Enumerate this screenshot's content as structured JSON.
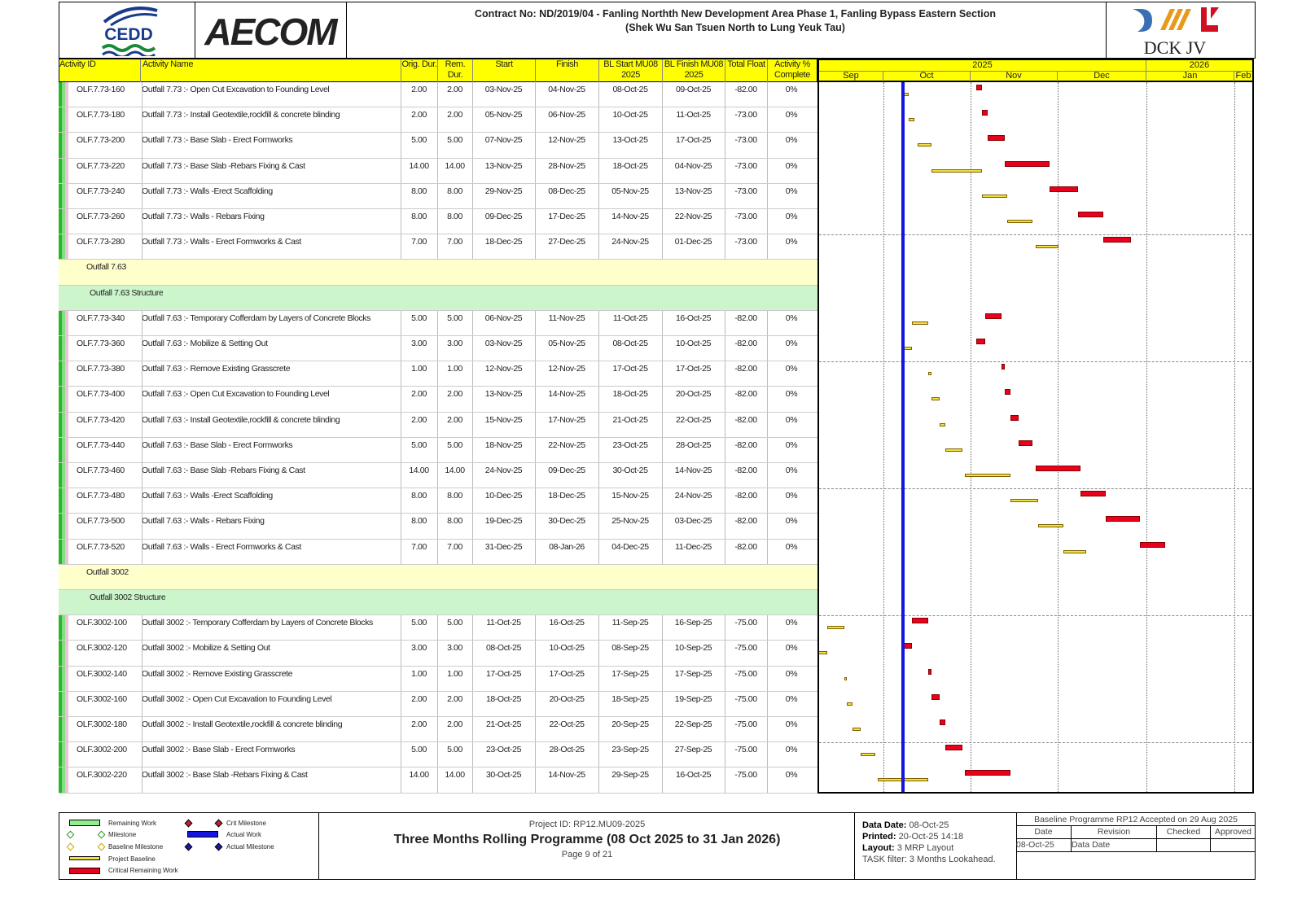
{
  "header": {
    "logo_cedd": "CEDD",
    "logo_aecom": "AECOM",
    "logo_dck": "DCK JV",
    "title_line1": "Contract No: ND/2019/04 - Fanling Northth New Development Area Phase 1, Fanling Bypass Eastern Section",
    "title_line2": "(Shek Wu San Tsuen North to Lung Yeuk Tau)"
  },
  "columns": {
    "id": "Activity ID",
    "name": "Activity Name",
    "orig": "Orig. Dur.",
    "rem": "Rem. Dur.",
    "start": "Start",
    "finish": "Finish",
    "bls": "BL Start MU08 2025",
    "blf": "BL Finish MU08 2025",
    "float": "Total Float",
    "pct": "Activity % Complete"
  },
  "timeline": {
    "years": [
      "2025",
      "2026"
    ],
    "months": [
      "Sep",
      "Oct",
      "Nov",
      "Dec",
      "Jan",
      "Feb"
    ],
    "data_date": "08-Oct-25"
  },
  "colors": {
    "critical": "#e8001c",
    "baseline": "#f0e040",
    "actual": "#1515e0",
    "header": "#ffff00"
  },
  "rows": [
    {
      "type": "act",
      "id": "OLF.7.73-160",
      "name": "Outfall 7.73 :- Open Cut Excavation to Founding Level",
      "orig": "2.00",
      "rem": "2.00",
      "start": "03-Nov-25",
      "finish": "04-Nov-25",
      "bls": "08-Oct-25",
      "blf": "09-Oct-25",
      "float": "-82.00",
      "pct": "0%"
    },
    {
      "type": "act",
      "id": "OLF.7.73-180",
      "name": "Outfall 7.73 :- Install Geotextile,rockfill & concrete blinding",
      "orig": "2.00",
      "rem": "2.00",
      "start": "05-Nov-25",
      "finish": "06-Nov-25",
      "bls": "10-Oct-25",
      "blf": "11-Oct-25",
      "float": "-73.00",
      "pct": "0%"
    },
    {
      "type": "act",
      "id": "OLF.7.73-200",
      "name": "Outfall 7.73 :- Base Slab - Erect Formworks",
      "orig": "5.00",
      "rem": "5.00",
      "start": "07-Nov-25",
      "finish": "12-Nov-25",
      "bls": "13-Oct-25",
      "blf": "17-Oct-25",
      "float": "-73.00",
      "pct": "0%"
    },
    {
      "type": "act",
      "id": "OLF.7.73-220",
      "name": "Outfall 7.73 :- Base Slab -Rebars Fixing & Cast",
      "orig": "14.00",
      "rem": "14.00",
      "start": "13-Nov-25",
      "finish": "28-Nov-25",
      "bls": "18-Oct-25",
      "blf": "04-Nov-25",
      "float": "-73.00",
      "pct": "0%"
    },
    {
      "type": "act",
      "id": "OLF.7.73-240",
      "name": "Outfall 7.73 :- Walls -Erect Scaffolding",
      "orig": "8.00",
      "rem": "8.00",
      "start": "29-Nov-25",
      "finish": "08-Dec-25",
      "bls": "05-Nov-25",
      "blf": "13-Nov-25",
      "float": "-73.00",
      "pct": "0%"
    },
    {
      "type": "act",
      "id": "OLF.7.73-260",
      "name": "Outfall 7.73 :- Walls - Rebars Fixing",
      "orig": "8.00",
      "rem": "8.00",
      "start": "09-Dec-25",
      "finish": "17-Dec-25",
      "bls": "14-Nov-25",
      "blf": "22-Nov-25",
      "float": "-73.00",
      "pct": "0%"
    },
    {
      "type": "act",
      "id": "OLF.7.73-280",
      "name": "Outfall 7.73 :- Walls - Erect Formworks & Cast",
      "orig": "7.00",
      "rem": "7.00",
      "start": "18-Dec-25",
      "finish": "27-Dec-25",
      "bls": "24-Nov-25",
      "blf": "01-Dec-25",
      "float": "-73.00",
      "pct": "0%"
    },
    {
      "type": "sec1",
      "name": "Outfall 7.63"
    },
    {
      "type": "sec2",
      "name": "Outfall 7.63 Structure"
    },
    {
      "type": "act",
      "id": "OLF.7.73-340",
      "name": "Outfall 7.63 :- Temporary Cofferdam by Layers of Concrete Blocks",
      "orig": "5.00",
      "rem": "5.00",
      "start": "06-Nov-25",
      "finish": "11-Nov-25",
      "bls": "11-Oct-25",
      "blf": "16-Oct-25",
      "float": "-82.00",
      "pct": "0%"
    },
    {
      "type": "act",
      "id": "OLF.7.73-360",
      "name": "Outfall 7.63 :- Mobilize & Setting Out",
      "orig": "3.00",
      "rem": "3.00",
      "start": "03-Nov-25",
      "finish": "05-Nov-25",
      "bls": "08-Oct-25",
      "blf": "10-Oct-25",
      "float": "-82.00",
      "pct": "0%"
    },
    {
      "type": "act",
      "id": "OLF.7.73-380",
      "name": "Outfall 7.63 :- Remove Existing Grasscrete",
      "orig": "1.00",
      "rem": "1.00",
      "start": "12-Nov-25",
      "finish": "12-Nov-25",
      "bls": "17-Oct-25",
      "blf": "17-Oct-25",
      "float": "-82.00",
      "pct": "0%"
    },
    {
      "type": "act",
      "id": "OLF.7.73-400",
      "name": "Outfall 7.63 :- Open Cut Excavation to Founding Level",
      "orig": "2.00",
      "rem": "2.00",
      "start": "13-Nov-25",
      "finish": "14-Nov-25",
      "bls": "18-Oct-25",
      "blf": "20-Oct-25",
      "float": "-82.00",
      "pct": "0%"
    },
    {
      "type": "act",
      "id": "OLF.7.73-420",
      "name": "Outfall 7.63 :- Install Geotextile,rockfill & concrete blinding",
      "orig": "2.00",
      "rem": "2.00",
      "start": "15-Nov-25",
      "finish": "17-Nov-25",
      "bls": "21-Oct-25",
      "blf": "22-Oct-25",
      "float": "-82.00",
      "pct": "0%"
    },
    {
      "type": "act",
      "id": "OLF.7.73-440",
      "name": "Outfall 7.63 :- Base Slab - Erect Formworks",
      "orig": "5.00",
      "rem": "5.00",
      "start": "18-Nov-25",
      "finish": "22-Nov-25",
      "bls": "23-Oct-25",
      "blf": "28-Oct-25",
      "float": "-82.00",
      "pct": "0%"
    },
    {
      "type": "act",
      "id": "OLF.7.73-460",
      "name": "Outfall 7.63 :- Base Slab -Rebars Fixing & Cast",
      "orig": "14.00",
      "rem": "14.00",
      "start": "24-Nov-25",
      "finish": "09-Dec-25",
      "bls": "30-Oct-25",
      "blf": "14-Nov-25",
      "float": "-82.00",
      "pct": "0%"
    },
    {
      "type": "act",
      "id": "OLF.7.73-480",
      "name": "Outfall 7.63 :- Walls -Erect Scaffolding",
      "orig": "8.00",
      "rem": "8.00",
      "start": "10-Dec-25",
      "finish": "18-Dec-25",
      "bls": "15-Nov-25",
      "blf": "24-Nov-25",
      "float": "-82.00",
      "pct": "0%"
    },
    {
      "type": "act",
      "id": "OLF.7.73-500",
      "name": "Outfall 7.63 :- Walls - Rebars Fixing",
      "orig": "8.00",
      "rem": "8.00",
      "start": "19-Dec-25",
      "finish": "30-Dec-25",
      "bls": "25-Nov-25",
      "blf": "03-Dec-25",
      "float": "-82.00",
      "pct": "0%"
    },
    {
      "type": "act",
      "id": "OLF.7.73-520",
      "name": "Outfall 7.63 :- Walls - Erect Formworks & Cast",
      "orig": "7.00",
      "rem": "7.00",
      "start": "31-Dec-25",
      "finish": "08-Jan-26",
      "bls": "04-Dec-25",
      "blf": "11-Dec-25",
      "float": "-82.00",
      "pct": "0%"
    },
    {
      "type": "sec1",
      "name": "Outfall 3002"
    },
    {
      "type": "sec2",
      "name": "Outfall 3002 Structure"
    },
    {
      "type": "act",
      "id": "OLF.3002-100",
      "name": "Outfall 3002 :- Temporary Cofferdam by Layers of Concrete Blocks",
      "orig": "5.00",
      "rem": "5.00",
      "start": "11-Oct-25",
      "finish": "16-Oct-25",
      "bls": "11-Sep-25",
      "blf": "16-Sep-25",
      "float": "-75.00",
      "pct": "0%"
    },
    {
      "type": "act",
      "id": "OLF.3002-120",
      "name": "Outfall 3002 :- Mobilize & Setting Out",
      "orig": "3.00",
      "rem": "3.00",
      "start": "08-Oct-25",
      "finish": "10-Oct-25",
      "bls": "08-Sep-25",
      "blf": "10-Sep-25",
      "float": "-75.00",
      "pct": "0%"
    },
    {
      "type": "act",
      "id": "OLF.3002-140",
      "name": "Outfall 3002 :- Remove Existing Grasscrete",
      "orig": "1.00",
      "rem": "1.00",
      "start": "17-Oct-25",
      "finish": "17-Oct-25",
      "bls": "17-Sep-25",
      "blf": "17-Sep-25",
      "float": "-75.00",
      "pct": "0%"
    },
    {
      "type": "act",
      "id": "OLF.3002-160",
      "name": "Outfall 3002 :- Open Cut Excavation to Founding Level",
      "orig": "2.00",
      "rem": "2.00",
      "start": "18-Oct-25",
      "finish": "20-Oct-25",
      "bls": "18-Sep-25",
      "blf": "19-Sep-25",
      "float": "-75.00",
      "pct": "0%"
    },
    {
      "type": "act",
      "id": "OLF.3002-180",
      "name": "Outfall 3002 :- Install Geotextile,rockfill & concrete blinding",
      "orig": "2.00",
      "rem": "2.00",
      "start": "21-Oct-25",
      "finish": "22-Oct-25",
      "bls": "20-Sep-25",
      "blf": "22-Sep-25",
      "float": "-75.00",
      "pct": "0%"
    },
    {
      "type": "act",
      "id": "OLF.3002-200",
      "name": "Outfall 3002 :- Base Slab - Erect Formworks",
      "orig": "5.00",
      "rem": "5.00",
      "start": "23-Oct-25",
      "finish": "28-Oct-25",
      "bls": "23-Sep-25",
      "blf": "27-Sep-25",
      "float": "-75.00",
      "pct": "0%"
    },
    {
      "type": "act",
      "id": "OLF.3002-220",
      "name": "Outfall 3002 :- Base Slab -Rebars Fixing & Cast",
      "orig": "14.00",
      "rem": "14.00",
      "start": "30-Oct-25",
      "finish": "14-Nov-25",
      "bls": "29-Sep-25",
      "blf": "16-Oct-25",
      "float": "-75.00",
      "pct": "0%"
    }
  ],
  "legend": {
    "remaining": "Remaining Work",
    "crit_ms": "Crit Milestone",
    "milestone": "Milestone",
    "actual_work": "Actual Work",
    "baseline_ms": "Baseline Milestone",
    "actual_ms": "Actual Milestone",
    "project_baseline": "Project Baseline",
    "critical_remaining": "Critical Remaining Work"
  },
  "footer": {
    "project_id": "Project ID: RP12.MU09-2025",
    "title": "Three Months Rolling Programme (08 Oct 2025 to 31 Jan 2026)",
    "page": "Page 9 of 21",
    "data_date_label": "Data Date:",
    "data_date": "08-Oct-25",
    "printed_label": "Printed:",
    "printed": "20-Oct-25 14:18",
    "layout_label": "Layout:",
    "layout": "3 MRP Layout",
    "filter": "TASK filter: 3 Months Lookahead.",
    "baseline_note": "Baseline Programme RP12 Accepted on 29 Aug 2025",
    "rev_headers": [
      "Date",
      "Revision",
      "Checked",
      "Approved"
    ],
    "rev_row": [
      "08-Oct-25",
      "Data Date",
      "",
      ""
    ]
  }
}
